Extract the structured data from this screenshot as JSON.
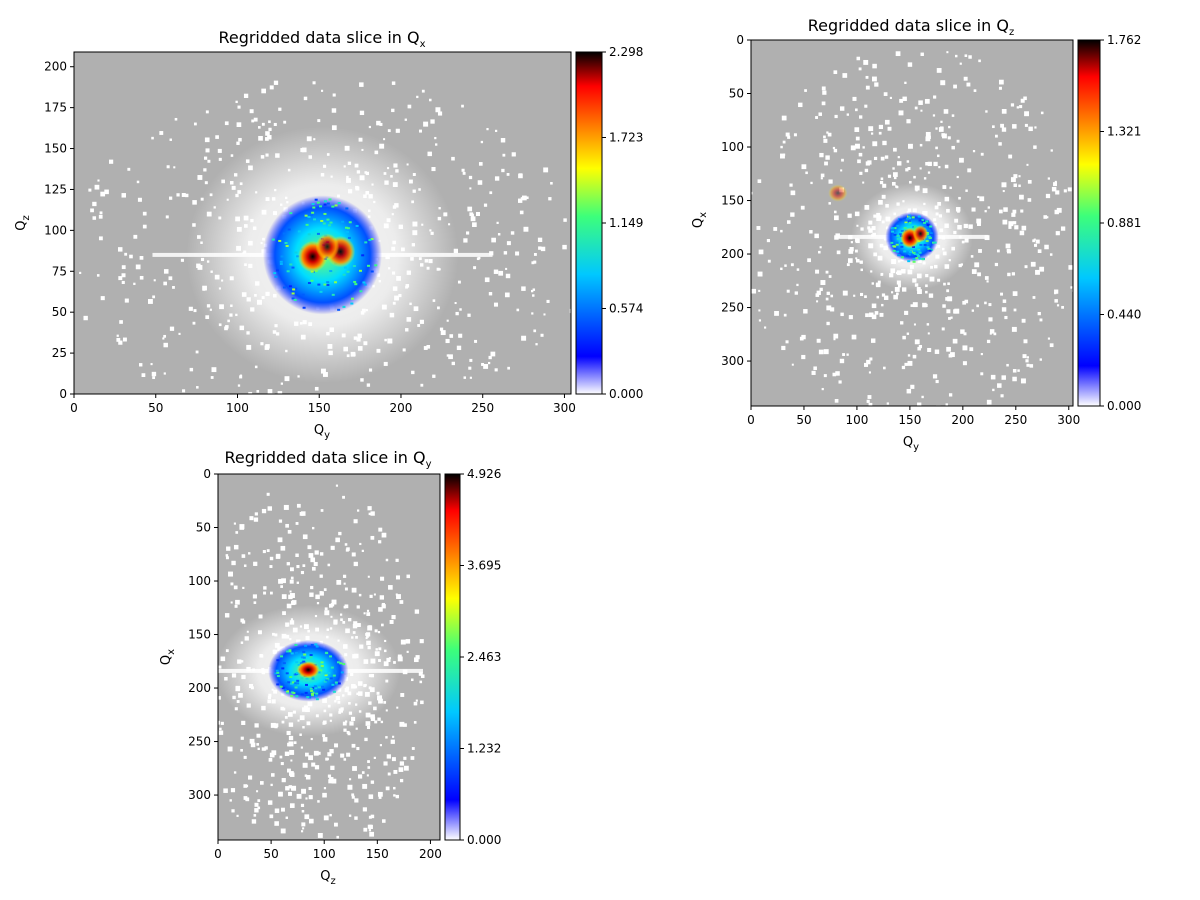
{
  "figure": {
    "background": "#ffffff",
    "masked_color": "#b0b0b0"
  },
  "chart_data": [
    {
      "type": "heatmap",
      "title": {
        "prefix": "Regridded data slice in Q",
        "sub": "x"
      },
      "xlabel": {
        "main": "Q",
        "sub": "y"
      },
      "ylabel": {
        "main": "Q",
        "sub": "z"
      },
      "xlim": [
        0,
        304
      ],
      "ylim": [
        0,
        209
      ],
      "y_inverted": false,
      "xticks": [
        0,
        50,
        100,
        150,
        200,
        250,
        300
      ],
      "yticks": [
        0,
        25,
        50,
        75,
        100,
        125,
        150,
        175,
        200
      ],
      "colorbar": {
        "min": 0.0,
        "max": 2.298,
        "ticks": [
          "0.000",
          "0.574",
          "1.149",
          "1.723",
          "2.298"
        ]
      },
      "masked_region_color": "#b0b0b0",
      "hot_spots": [
        {
          "x": 146,
          "y": 84,
          "value": 2.298,
          "rx": 5,
          "ry": 6
        },
        {
          "x": 163,
          "y": 87,
          "value": 1.9,
          "rx": 5,
          "ry": 6
        },
        {
          "x": 155,
          "y": 90,
          "value": 1.7,
          "rx": 4,
          "ry": 5
        }
      ],
      "blob": {
        "x": 152,
        "y": 85,
        "rx": 26,
        "ry": 28
      }
    },
    {
      "type": "heatmap",
      "title": {
        "prefix": "Regridded data slice in Q",
        "sub": "z"
      },
      "xlabel": {
        "main": "Q",
        "sub": "y"
      },
      "ylabel": {
        "main": "Q",
        "sub": "x"
      },
      "xlim": [
        0,
        304
      ],
      "ylim": [
        0,
        342
      ],
      "y_inverted": true,
      "xticks": [
        0,
        50,
        100,
        150,
        200,
        250,
        300
      ],
      "yticks": [
        0,
        50,
        100,
        150,
        200,
        250,
        300
      ],
      "colorbar": {
        "min": 0.0,
        "max": 1.762,
        "ticks": [
          "0.000",
          "0.440",
          "0.881",
          "1.321",
          "1.762"
        ]
      },
      "masked_region_color": "#b0b0b0",
      "hot_spots": [
        {
          "x": 150,
          "y": 185,
          "value": 1.762,
          "rx": 5,
          "ry": 6
        },
        {
          "x": 160,
          "y": 181,
          "value": 1.4,
          "rx": 4,
          "ry": 5
        },
        {
          "x": 82,
          "y": 143,
          "value": 0.7,
          "rx": 5,
          "ry": 5
        }
      ],
      "blob": {
        "x": 152,
        "y": 184,
        "rx": 18,
        "ry": 18
      }
    },
    {
      "type": "heatmap",
      "title": {
        "prefix": "Regridded data slice in Q",
        "sub": "y"
      },
      "xlabel": {
        "main": "Q",
        "sub": "z"
      },
      "ylabel": {
        "main": "Q",
        "sub": "x"
      },
      "xlim": [
        0,
        209
      ],
      "ylim": [
        0,
        342
      ],
      "y_inverted": true,
      "xticks": [
        0,
        50,
        100,
        150,
        200
      ],
      "yticks": [
        0,
        50,
        100,
        150,
        200,
        250,
        300
      ],
      "colorbar": {
        "min": 0.0,
        "max": 4.926,
        "ticks": [
          "0.000",
          "1.232",
          "2.463",
          "3.695",
          "4.926"
        ]
      },
      "masked_region_color": "#b0b0b0",
      "hot_spots": [
        {
          "x": 85,
          "y": 183,
          "value": 4.926,
          "rx": 6,
          "ry": 5
        }
      ],
      "blob": {
        "x": 85,
        "y": 184,
        "rx": 27,
        "ry": 22
      }
    }
  ]
}
